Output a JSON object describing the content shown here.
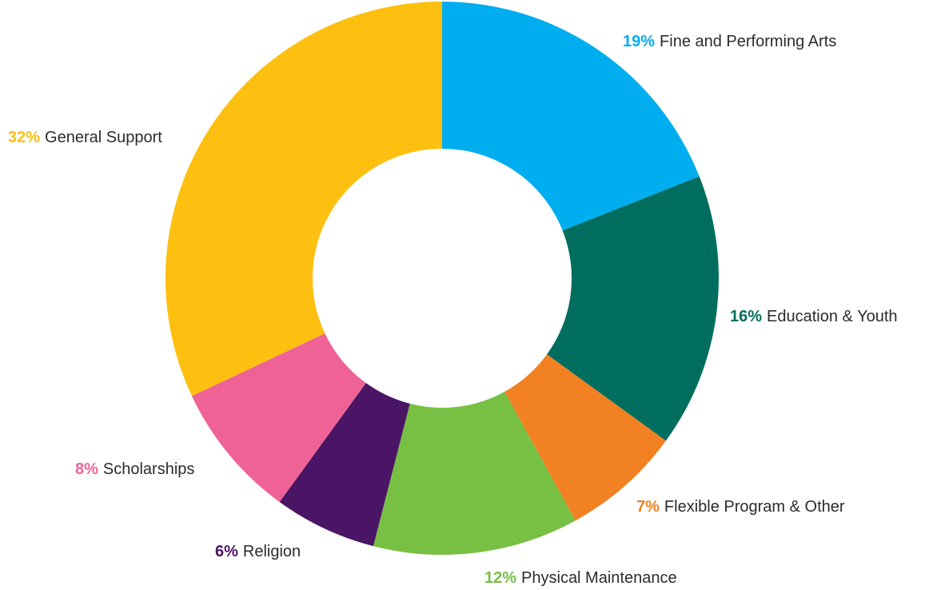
{
  "chart_data": {
    "type": "pie",
    "donut": true,
    "start_angle_deg": 0,
    "direction": "clockwise",
    "slices": [
      {
        "pct_label": "19%",
        "label": "Fine and Performing Arts",
        "value": 19,
        "color": "#00adee"
      },
      {
        "pct_label": "16%",
        "label": "Education & Youth",
        "value": 16,
        "color": "#006e5e"
      },
      {
        "pct_label": "7%",
        "label": "Flexible Program & Other",
        "value": 7,
        "color": "#f28123"
      },
      {
        "pct_label": "12%",
        "label": "Physical Maintenance",
        "value": 12,
        "color": "#77c043"
      },
      {
        "pct_label": "6%",
        "label": "Religion",
        "value": 6,
        "color": "#4b1566"
      },
      {
        "pct_label": "8%",
        "label": "Scholarships",
        "value": 8,
        "color": "#ef6296"
      },
      {
        "pct_label": "32%",
        "label": "General Support",
        "value": 32,
        "color": "#fdc010"
      }
    ]
  }
}
